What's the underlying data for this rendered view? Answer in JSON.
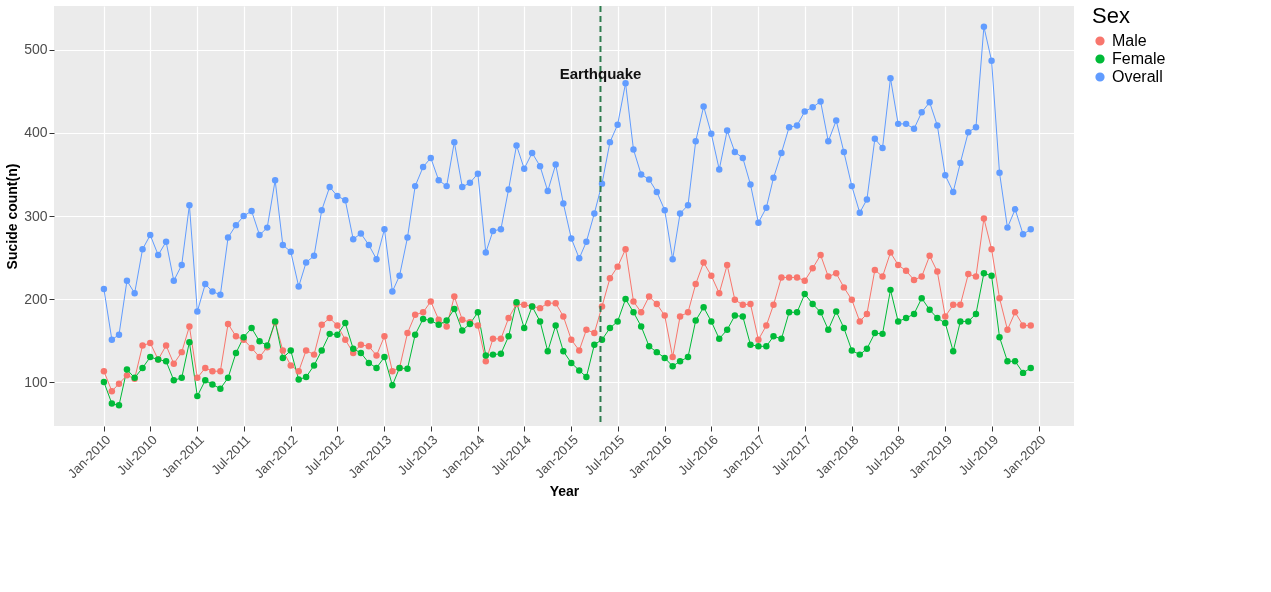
{
  "chart_data": {
    "type": "line",
    "xlabel": "Year",
    "ylabel": "Sucide count(n)",
    "legend_title": "Sex",
    "legend": "right",
    "grid": true,
    "marker": "circle",
    "line_style": "solid",
    "x": [
      "2010-01",
      "2010-02",
      "2010-03",
      "2010-04",
      "2010-05",
      "2010-06",
      "2010-07",
      "2010-08",
      "2010-09",
      "2010-10",
      "2010-11",
      "2010-12",
      "2011-01",
      "2011-02",
      "2011-03",
      "2011-04",
      "2011-05",
      "2011-06",
      "2011-07",
      "2011-08",
      "2011-09",
      "2011-10",
      "2011-11",
      "2011-12",
      "2012-01",
      "2012-02",
      "2012-03",
      "2012-04",
      "2012-05",
      "2012-06",
      "2012-07",
      "2012-08",
      "2012-09",
      "2012-10",
      "2012-11",
      "2012-12",
      "2013-01",
      "2013-02",
      "2013-03",
      "2013-04",
      "2013-05",
      "2013-06",
      "2013-07",
      "2013-08",
      "2013-09",
      "2013-10",
      "2013-11",
      "2013-12",
      "2014-01",
      "2014-02",
      "2014-03",
      "2014-04",
      "2014-05",
      "2014-06",
      "2014-07",
      "2014-08",
      "2014-09",
      "2014-10",
      "2014-11",
      "2014-12",
      "2015-01",
      "2015-02",
      "2015-03",
      "2015-04",
      "2015-05",
      "2015-06",
      "2015-07",
      "2015-08",
      "2015-09",
      "2015-10",
      "2015-11",
      "2015-12",
      "2016-01",
      "2016-02",
      "2016-03",
      "2016-04",
      "2016-05",
      "2016-06",
      "2016-07",
      "2016-08",
      "2016-09",
      "2016-10",
      "2016-11",
      "2016-12",
      "2017-01",
      "2017-02",
      "2017-03",
      "2017-04",
      "2017-05",
      "2017-06",
      "2017-07",
      "2017-08",
      "2017-09",
      "2017-10",
      "2017-11",
      "2017-12",
      "2018-01",
      "2018-02",
      "2018-03",
      "2018-04",
      "2018-05",
      "2018-06",
      "2018-07",
      "2018-08",
      "2018-09",
      "2018-10",
      "2018-11",
      "2018-12",
      "2019-01",
      "2019-02",
      "2019-03",
      "2019-04",
      "2019-05",
      "2019-06",
      "2019-07",
      "2019-08",
      "2019-09",
      "2019-10",
      "2019-11",
      "2019-12"
    ],
    "xlim": [
      "2009-06-20",
      "2020-05-18"
    ],
    "xticks": [
      {
        "value": "2010-01",
        "label": "Jan-2010"
      },
      {
        "value": "2010-07",
        "label": "Jul-2010"
      },
      {
        "value": "2011-01",
        "label": "Jan-2011"
      },
      {
        "value": "2011-07",
        "label": "Jul-2011"
      },
      {
        "value": "2012-01",
        "label": "Jan-2012"
      },
      {
        "value": "2012-07",
        "label": "Jul-2012"
      },
      {
        "value": "2013-01",
        "label": "Jan-2013"
      },
      {
        "value": "2013-07",
        "label": "Jul-2013"
      },
      {
        "value": "2014-01",
        "label": "Jan-2014"
      },
      {
        "value": "2014-07",
        "label": "Jul-2014"
      },
      {
        "value": "2015-01",
        "label": "Jan-2015"
      },
      {
        "value": "2015-07",
        "label": "Jul-2015"
      },
      {
        "value": "2016-01",
        "label": "Jan-2016"
      },
      {
        "value": "2016-07",
        "label": "Jul-2016"
      },
      {
        "value": "2017-01",
        "label": "Jan-2017"
      },
      {
        "value": "2017-07",
        "label": "Jul-2017"
      },
      {
        "value": "2018-01",
        "label": "Jan-2018"
      },
      {
        "value": "2018-07",
        "label": "Jul-2018"
      },
      {
        "value": "2019-01",
        "label": "Jan-2019"
      },
      {
        "value": "2019-07",
        "label": "Jul-2019"
      },
      {
        "value": "2020-01",
        "label": "Jan-2020"
      }
    ],
    "ylim": [
      47,
      553
    ],
    "yticks": [
      100,
      200,
      300,
      400,
      500
    ],
    "ref_lines": [
      {
        "axis": "x",
        "value": "2015-04-25",
        "label": "Earthquake",
        "color": "#2e7d4f",
        "line_style": "dashed"
      }
    ],
    "series": [
      {
        "name": "Male",
        "color": "#f8766d",
        "values": [
          113,
          89,
          98,
          108,
          104,
          144,
          147,
          127,
          144,
          122,
          136,
          167,
          105,
          117,
          113,
          113,
          170,
          155,
          151,
          141,
          130,
          142,
          172,
          138,
          120,
          113,
          138,
          133,
          169,
          177,
          168,
          151,
          135,
          145,
          143,
          132,
          155,
          113,
          117,
          159,
          181,
          184,
          197,
          175,
          167,
          203,
          175,
          172,
          168,
          125,
          152,
          152,
          177,
          194,
          193,
          191,
          189,
          195,
          195,
          179,
          151,
          138,
          163,
          159,
          191,
          225,
          239,
          260,
          197,
          184,
          203,
          194,
          180,
          130,
          179,
          184,
          218,
          244,
          228,
          207,
          241,
          199,
          193,
          194,
          151,
          168,
          193,
          226,
          226,
          226,
          222,
          237,
          253,
          227,
          231,
          214,
          199,
          173,
          182,
          235,
          227,
          256,
          241,
          234,
          223,
          227,
          252,
          233,
          179,
          193,
          193,
          230,
          227,
          297,
          260,
          201,
          163,
          184,
          168,
          168
        ]
      },
      {
        "name": "Female",
        "color": "#00ba38",
        "values": [
          100,
          74,
          72,
          115,
          105,
          117,
          130,
          127,
          125,
          102,
          105,
          148,
          83,
          102,
          97,
          92,
          105,
          135,
          154,
          165,
          149,
          144,
          173,
          129,
          138,
          103,
          106,
          120,
          138,
          158,
          157,
          171,
          140,
          135,
          123,
          117,
          130,
          96,
          117,
          116,
          157,
          176,
          174,
          169,
          174,
          188,
          162,
          170,
          184,
          132,
          133,
          134,
          155,
          196,
          165,
          191,
          173,
          137,
          168,
          137,
          123,
          114,
          106,
          145,
          151,
          165,
          173,
          200,
          184,
          167,
          143,
          136,
          129,
          119,
          125,
          130,
          174,
          190,
          173,
          152,
          163,
          180,
          179,
          145,
          143,
          143,
          155,
          152,
          184,
          184,
          206,
          194,
          184,
          163,
          185,
          165,
          138,
          133,
          140,
          159,
          158,
          211,
          173,
          177,
          182,
          201,
          187,
          177,
          171,
          137,
          173,
          173,
          182,
          231,
          228,
          154,
          125,
          125,
          111,
          117
        ]
      },
      {
        "name": "Overall",
        "color": "#619cff",
        "values": [
          212,
          151,
          157,
          222,
          207,
          260,
          277,
          253,
          269,
          222,
          241,
          313,
          185,
          218,
          209,
          205,
          274,
          289,
          300,
          306,
          277,
          286,
          343,
          265,
          257,
          215,
          244,
          252,
          307,
          335,
          324,
          319,
          272,
          279,
          265,
          248,
          284,
          209,
          228,
          274,
          336,
          359,
          370,
          343,
          336,
          389,
          335,
          340,
          351,
          256,
          282,
          284,
          332,
          385,
          357,
          376,
          360,
          330,
          362,
          315,
          273,
          249,
          269,
          303,
          339,
          389,
          410,
          460,
          380,
          350,
          344,
          329,
          307,
          248,
          303,
          313,
          390,
          432,
          399,
          356,
          403,
          377,
          370,
          338,
          292,
          310,
          346,
          376,
          407,
          409,
          426,
          431,
          438,
          390,
          415,
          377,
          336,
          304,
          320,
          393,
          382,
          466,
          411,
          411,
          405,
          425,
          437,
          409,
          349,
          329,
          364,
          401,
          407,
          528,
          487,
          352,
          286,
          308,
          278,
          284
        ]
      }
    ]
  }
}
